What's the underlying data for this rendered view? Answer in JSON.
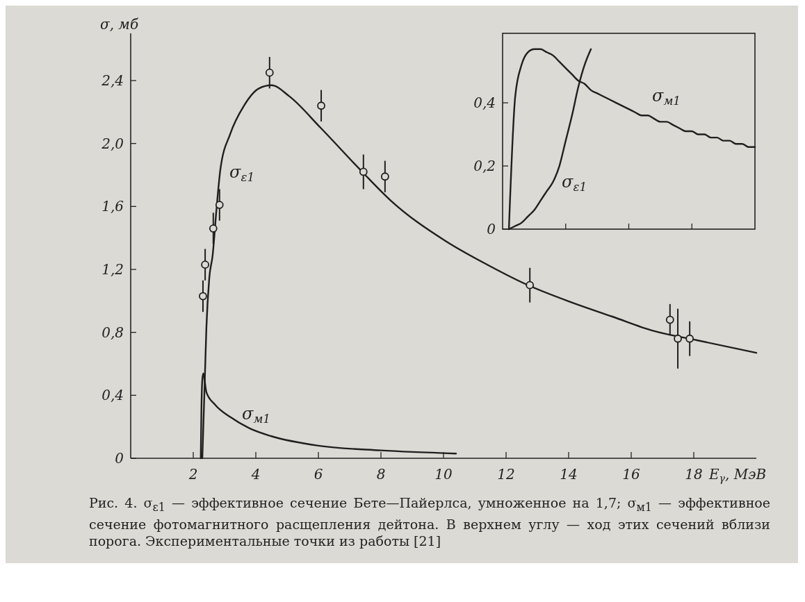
{
  "chart_data": [
    {
      "type": "line",
      "xlabel": "E$_{γ}$, МэВ",
      "ylabel": "σ, мб",
      "xlim": [
        0,
        20
      ],
      "ylim": [
        0,
        2.7
      ],
      "xticks": [
        2,
        4,
        6,
        8,
        10,
        12,
        14,
        16,
        18
      ],
      "yticks": [
        0,
        {
          "value": 0.4,
          "label": "0,4"
        },
        {
          "value": 0.8,
          "label": "0,8"
        },
        {
          "value": 1.2,
          "label": "1,2"
        },
        {
          "value": 1.6,
          "label": "1,6"
        },
        {
          "value": 2.0,
          "label": "2,0"
        },
        {
          "value": 2.4,
          "label": "2,4"
        }
      ],
      "annotations": [
        "Рис. 4. σ$_{ε1}$ — эффективное сечение Бете—Пайерлса, умноженное на 1,7; σ$_{м1}$ — эффективное сечение фотомагнитного расщепления дейтона. В верхнем углу — ход этих сечений вблизи порога. Экспериментальные точки из работы [21]"
      ],
      "series": [
        {
          "name": "σ$_{ε1}$",
          "color": "#1f1f1f",
          "x": [
            2.29,
            2.36,
            2.42,
            2.51,
            2.62,
            2.75,
            2.87,
            3.18,
            3.62,
            4.1,
            4.5,
            5.07,
            6.07,
            7.4,
            8.3,
            10.07,
            11.4,
            12.7,
            14.1,
            15.4,
            16.7,
            18.1,
            20
          ],
          "values": [
            0,
            0.44,
            0.83,
            1.14,
            1.29,
            1.6,
            1.84,
            2.06,
            2.24,
            2.35,
            2.37,
            2.3,
            2.1,
            1.82,
            1.64,
            1.38,
            1.23,
            1.1,
            0.99,
            0.9,
            0.81,
            0.75,
            0.67
          ]
        },
        {
          "name": "σ$_{м1}$",
          "color": "#1f1f1f",
          "x": [
            2.24,
            2.26,
            2.29,
            2.32,
            2.36,
            2.42,
            2.7,
            3.2,
            3.8,
            4.5,
            6,
            8,
            10.4
          ],
          "values": [
            0,
            0.3,
            0.5,
            0.54,
            0.5,
            0.42,
            0.34,
            0.26,
            0.19,
            0.14,
            0.08,
            0.05,
            0.03
          ]
        },
        {
          "type": "scatter",
          "color": "#1f1f1f",
          "marker": "circle",
          "x": [
            2.31,
            2.38,
            2.64,
            2.84,
            4.44,
            6.09,
            7.44,
            8.13,
            12.76,
            17.24,
            17.49,
            17.87
          ],
          "values": [
            1.03,
            1.23,
            1.46,
            1.61,
            2.45,
            2.24,
            1.82,
            1.79,
            1.1,
            0.88,
            0.76,
            0.76
          ],
          "errors": [
            0.1,
            0.1,
            0.1,
            0.1,
            0.1,
            0.1,
            0.11,
            0.1,
            0.11,
            0.1,
            0.19,
            0.11
          ]
        }
      ]
    },
    {
      "type": "line",
      "categories": [
        null,
        null,
        null,
        null,
        null,
        null,
        null,
        null,
        null,
        null,
        null,
        null,
        null,
        null,
        null,
        null,
        null,
        null,
        null,
        null,
        null,
        null,
        null,
        null,
        null,
        null,
        null,
        null,
        null,
        null,
        null,
        null,
        null,
        null,
        null,
        null,
        null,
        null,
        null,
        null,
        null
      ],
      "ylim": [
        0,
        0.62
      ],
      "yticks": [
        0,
        {
          "value": 0.2,
          "label": "0,2"
        },
        {
          "value": 0.4,
          "label": "0,4"
        }
      ],
      "series": [
        {
          "name": "σ$_{ε1}$",
          "color": "#1f1f1f",
          "values": [
            null,
            0,
            0.01,
            0.02,
            0.04,
            0.06,
            0.09,
            0.12,
            0.15,
            0.2,
            0.28,
            0.36,
            0.45,
            0.52,
            0.57,
            null,
            null,
            null,
            null,
            null,
            null,
            null,
            null,
            null,
            null,
            null,
            null,
            null,
            null,
            null,
            null,
            null,
            null,
            null,
            null,
            null,
            null,
            null,
            null,
            null,
            null
          ]
        },
        {
          "name": "σ$_{м1}$",
          "color": "#1f1f1f",
          "values": [
            null,
            0,
            0.42,
            0.52,
            0.56,
            0.57,
            0.57,
            0.56,
            0.55,
            0.53,
            0.51,
            0.49,
            0.47,
            0.46,
            0.44,
            0.43,
            0.42,
            0.41,
            0.4,
            0.39,
            0.38,
            0.37,
            0.36,
            0.36,
            0.35,
            0.34,
            0.34,
            0.33,
            0.32,
            0.31,
            0.31,
            0.3,
            0.3,
            0.29,
            0.29,
            0.28,
            0.28,
            0.27,
            0.27,
            0.26,
            0.26
          ]
        }
      ]
    }
  ]
}
